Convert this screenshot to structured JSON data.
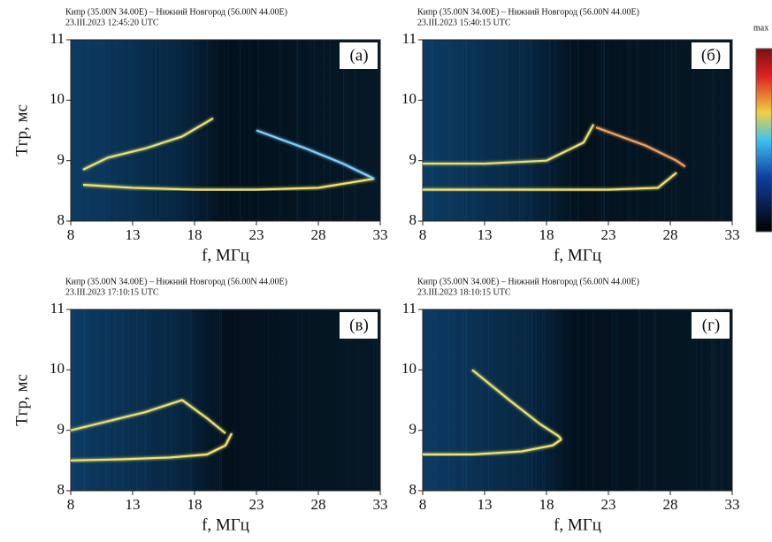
{
  "chart_data": [
    {
      "type": "ionogram",
      "title": "Кипр (35.00N 34.00E) – Нижний Новгород (56.00N 44.00E)",
      "subtitle": "23.III.2023 12:45:20 UTC",
      "panel_label": "(а)",
      "xlabel": "f, МГц",
      "ylabel": "Tгр, мс",
      "xlim": [
        8,
        33
      ],
      "ylim": [
        8,
        11
      ],
      "xticks": [
        8,
        13,
        18,
        23,
        28,
        33
      ],
      "yticks": [
        8,
        9,
        10,
        11
      ],
      "series": [
        {
          "color": "#f2e36a",
          "x": [
            9,
            13,
            18,
            23,
            28,
            32.5
          ],
          "values": [
            8.6,
            8.55,
            8.52,
            8.52,
            8.55,
            8.7
          ]
        },
        {
          "color": "#e8e070",
          "x": [
            9,
            11,
            14,
            17,
            19.5
          ],
          "values": [
            8.85,
            9.05,
            9.2,
            9.4,
            9.7
          ]
        },
        {
          "color": "#7fd0ff",
          "x": [
            23,
            27,
            30,
            32.5
          ],
          "values": [
            9.5,
            9.2,
            8.95,
            8.7
          ]
        }
      ]
    },
    {
      "type": "ionogram",
      "title": "Кипр (35.00N 34.00E) – Нижний Новгород (56.00N 44.00E)",
      "subtitle": "23.III.2023 15:40:15 UTC",
      "panel_label": "(б)",
      "xlabel": "f, МГц",
      "xlim": [
        8,
        33
      ],
      "ylim": [
        8,
        11
      ],
      "xticks": [
        8,
        13,
        18,
        23,
        28,
        33
      ],
      "yticks": [
        8,
        9,
        10,
        11
      ],
      "colorbar_label": "max",
      "series": [
        {
          "color": "#f2e36a",
          "x": [
            8,
            13,
            18,
            23,
            27,
            28.5
          ],
          "values": [
            8.52,
            8.52,
            8.52,
            8.52,
            8.55,
            8.8
          ]
        },
        {
          "color": "#e8e070",
          "x": [
            8,
            13,
            18,
            21,
            21.8
          ],
          "values": [
            8.95,
            8.95,
            9.0,
            9.3,
            9.6
          ]
        },
        {
          "color": "#f0a060",
          "x": [
            22,
            26,
            28.5,
            29.2
          ],
          "values": [
            9.55,
            9.25,
            9.0,
            8.9
          ]
        }
      ]
    },
    {
      "type": "ionogram",
      "title": "Кипр (35.00N 34.00E) – Нижний Новгород (56.00N 44.00E)",
      "subtitle": "23.III.2023 17:10:15 UTC",
      "panel_label": "(в)",
      "xlabel": "f, МГц",
      "ylabel": "Tгр, мс",
      "xlim": [
        8,
        33
      ],
      "ylim": [
        8,
        11
      ],
      "xticks": [
        8,
        13,
        18,
        23,
        28,
        33
      ],
      "yticks": [
        8,
        9,
        10,
        11
      ],
      "series": [
        {
          "color": "#f2e36a",
          "x": [
            8,
            12,
            16,
            19,
            20.5,
            21
          ],
          "values": [
            8.5,
            8.52,
            8.55,
            8.6,
            8.75,
            8.95
          ]
        },
        {
          "color": "#e8e070",
          "x": [
            8,
            11,
            14,
            17,
            19,
            20.5
          ],
          "values": [
            9.0,
            9.15,
            9.3,
            9.5,
            9.2,
            8.95
          ]
        }
      ]
    },
    {
      "type": "ionogram",
      "title": "Кипр (35.00N 34.00E) – Нижний Новгород (56.00N 44.00E)",
      "subtitle": "23.III.2023 18:10:15 UTC",
      "panel_label": "(г)",
      "xlabel": "f, МГц",
      "xlim": [
        8,
        33
      ],
      "ylim": [
        8,
        11
      ],
      "xticks": [
        8,
        13,
        18,
        23,
        28,
        33
      ],
      "yticks": [
        8,
        9,
        10,
        11
      ],
      "series": [
        {
          "color": "#f2e36a",
          "x": [
            8,
            12,
            16,
            18.5,
            19.2
          ],
          "values": [
            8.6,
            8.6,
            8.65,
            8.75,
            8.85
          ]
        },
        {
          "color": "#e8e070",
          "x": [
            12,
            15,
            17.5,
            19,
            19.2
          ],
          "values": [
            10.0,
            9.5,
            9.1,
            8.9,
            8.85
          ]
        }
      ]
    }
  ]
}
